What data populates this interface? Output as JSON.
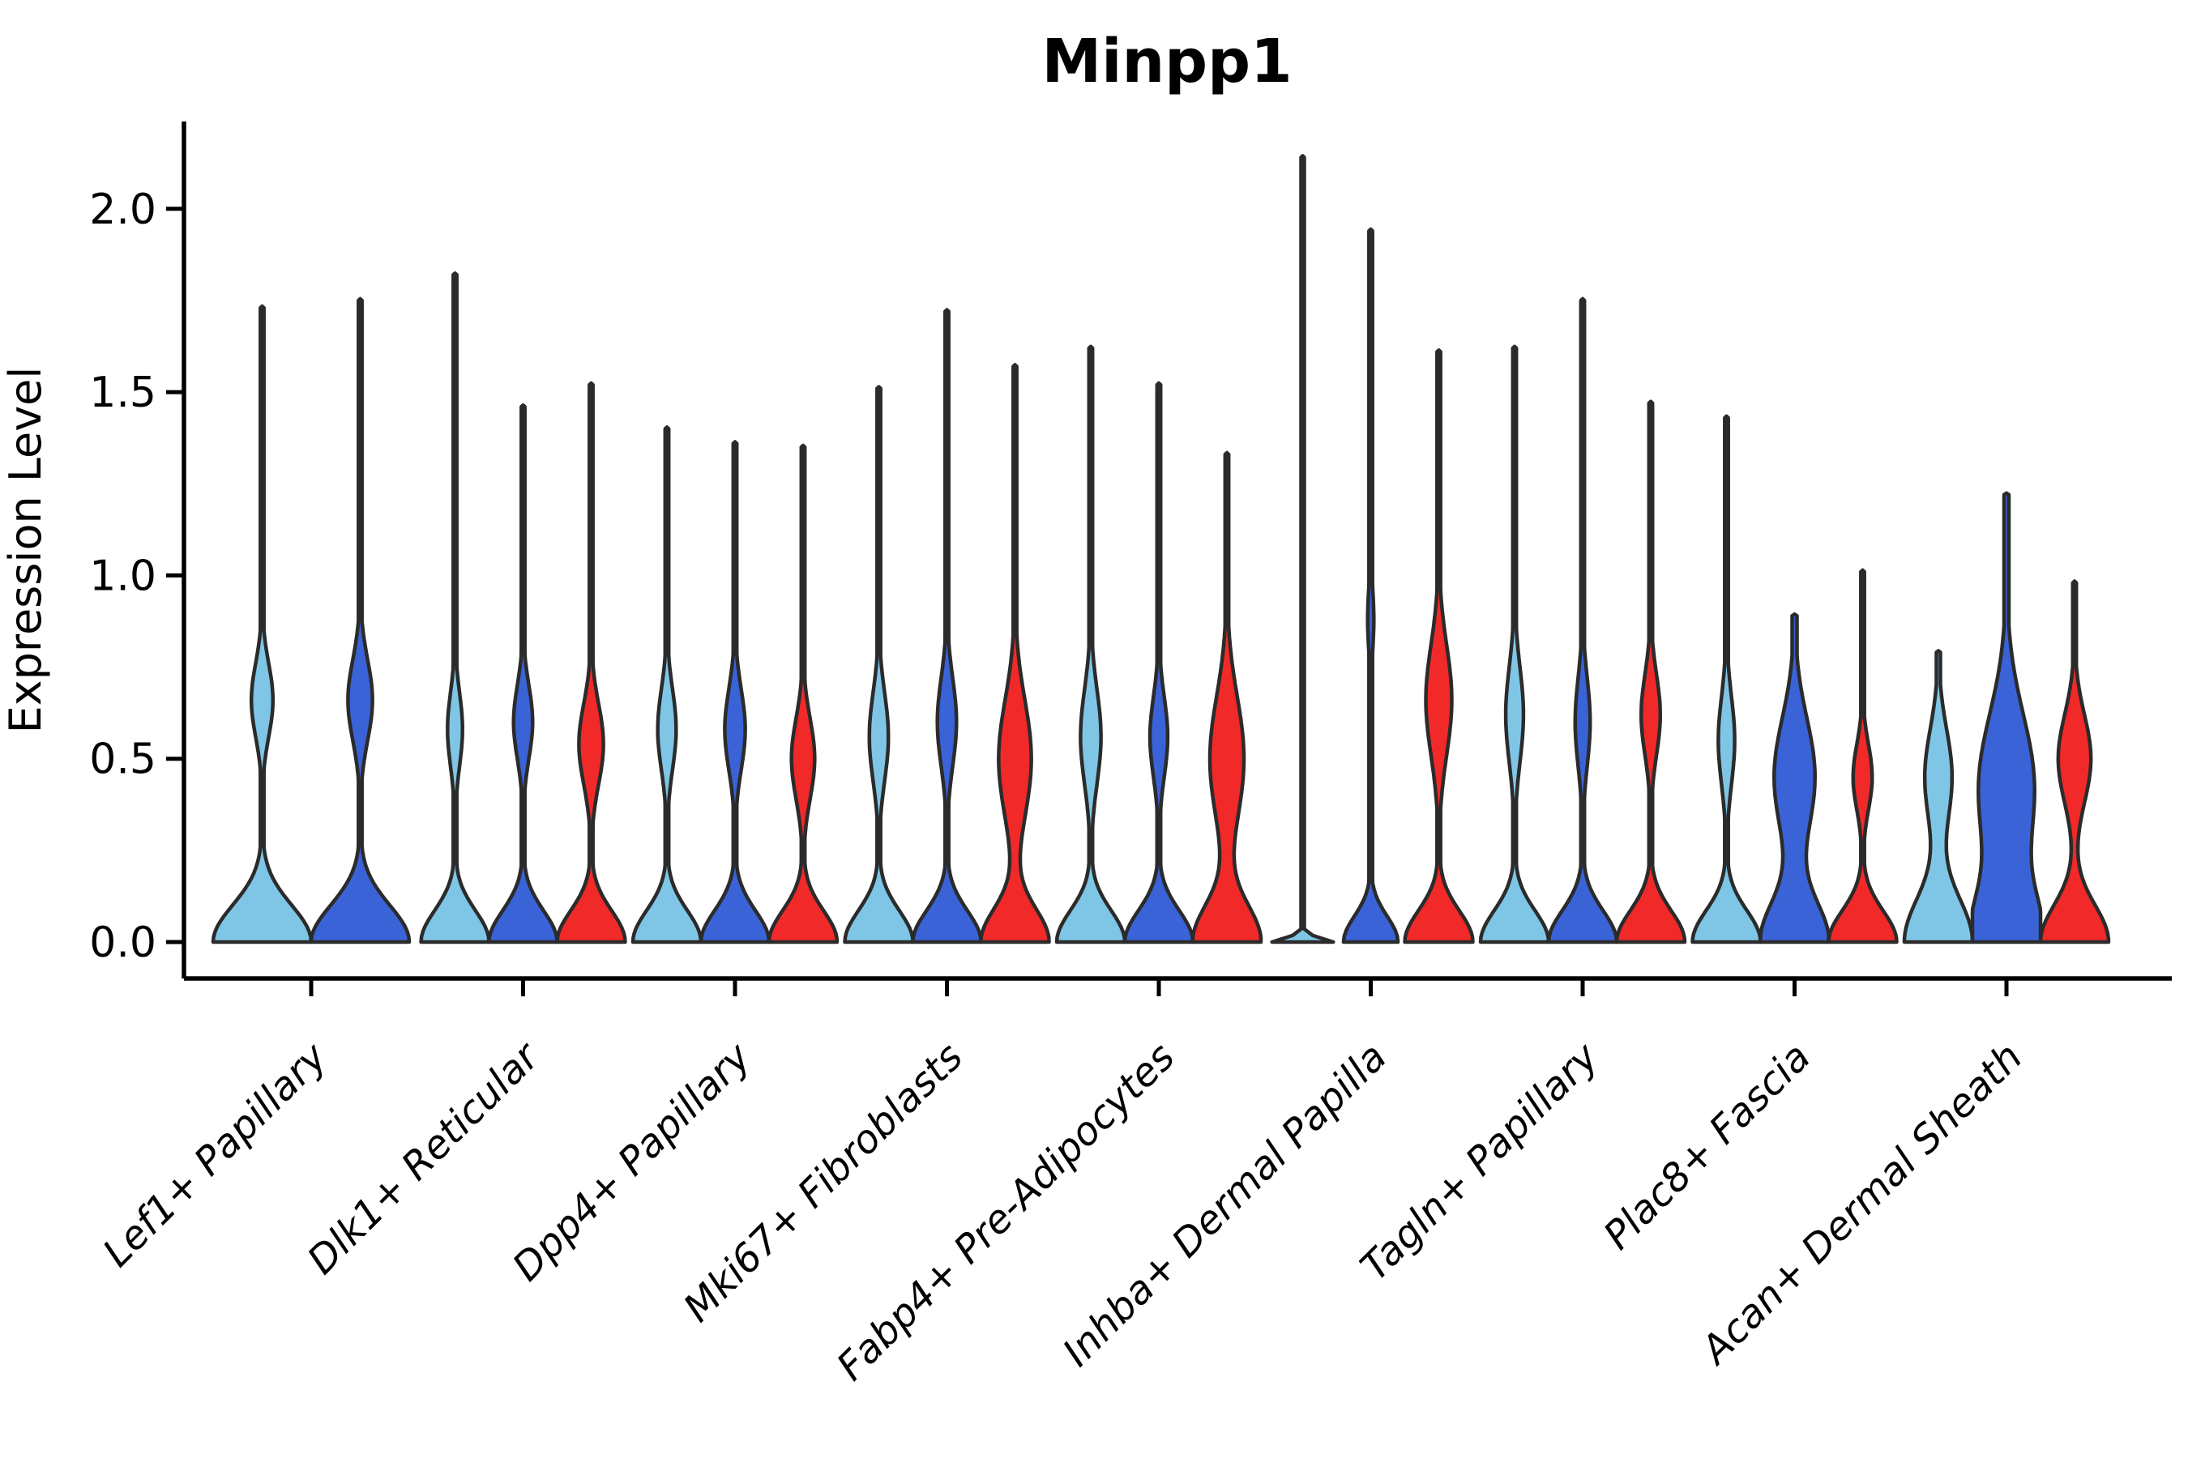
{
  "title": "Minpp1",
  "y_axis": {
    "label": "Expression Level",
    "tick_labels": [
      "0.0",
      "0.5",
      "1.0",
      "1.5",
      "2.0"
    ]
  },
  "x_axis": {
    "categories": [
      "Lef1+ Papillary",
      "Dlk1+ Reticular",
      "Dpp4+ Papillary",
      "Mki67+ Fibroblasts",
      "Fabp4+ Pre-Adipocytes",
      "Inhba+ Dermal Papilla",
      "Tagln+ Papillary",
      "Plac8+ Fascia",
      "Acan+ Dermal Sheath"
    ]
  },
  "colors": {
    "light_blue": "#7FC6E6",
    "dark_blue": "#3A63D8",
    "red": "#F12929",
    "outline": "#2B2B2B",
    "text": "#000000",
    "background": "#FFFFFF"
  },
  "chart_data": {
    "type": "violin",
    "title": "Minpp1",
    "xlabel": "",
    "ylabel": "Expression Level",
    "yticks": [
      0.0,
      0.5,
      1.0,
      1.5,
      2.0
    ],
    "ylim": [
      -0.1,
      2.24
    ],
    "grid": false,
    "legend": false,
    "series_colors": {
      "light_blue": "#7FC6E6",
      "dark_blue": "#3A63D8",
      "red": "#F12929"
    },
    "categories": [
      "Lef1+ Papillary",
      "Dlk1+ Reticular",
      "Dpp4+ Papillary",
      "Mki67+ Fibroblasts",
      "Fabp4+ Pre-Adipocytes",
      "Inhba+ Dermal Papilla",
      "Tagln+ Papillary",
      "Plac8+ Fascia",
      "Acan+ Dermal Sheath"
    ],
    "groups": [
      {
        "label": "Lef1+ Papillary",
        "violins": [
          {
            "c": "light_blue",
            "max": 1.73,
            "bs": 0.1,
            "ba": 1.0,
            "bulge": [
              0.22,
              0.66,
              0.1
            ]
          },
          {
            "c": "dark_blue",
            "max": 1.75,
            "bs": 0.1,
            "ba": 1.0,
            "bulge": [
              0.25,
              0.66,
              0.11
            ]
          }
        ]
      },
      {
        "label": "Dlk1+ Reticular",
        "violins": [
          {
            "c": "light_blue",
            "max": 1.82,
            "bs": 0.085,
            "ba": 1.0,
            "bulge": [
              0.22,
              0.58,
              0.1
            ]
          },
          {
            "c": "dark_blue",
            "max": 1.46,
            "bs": 0.085,
            "ba": 1.0,
            "bulge": [
              0.28,
              0.6,
              0.1
            ]
          },
          {
            "c": "red",
            "max": 1.52,
            "bs": 0.085,
            "ba": 1.0,
            "bulge": [
              0.36,
              0.54,
              0.11
            ]
          }
        ]
      },
      {
        "label": "Dpp4+ Papillary",
        "violins": [
          {
            "c": "light_blue",
            "max": 1.4,
            "bs": 0.085,
            "ba": 1.0,
            "bulge": [
              0.27,
              0.58,
              0.11
            ]
          },
          {
            "c": "dark_blue",
            "max": 1.36,
            "bs": 0.085,
            "ba": 1.0,
            "bulge": [
              0.3,
              0.58,
              0.11
            ]
          },
          {
            "c": "red",
            "max": 1.35,
            "bs": 0.085,
            "ba": 1.0,
            "bulge": [
              0.34,
              0.5,
              0.11
            ]
          }
        ]
      },
      {
        "label": "Mki67+ Fibroblasts",
        "violins": [
          {
            "c": "light_blue",
            "max": 1.51,
            "bs": 0.085,
            "ba": 1.0,
            "bulge": [
              0.28,
              0.56,
              0.12
            ]
          },
          {
            "c": "dark_blue",
            "max": 1.72,
            "bs": 0.085,
            "ba": 1.0,
            "bulge": [
              0.28,
              0.6,
              0.12
            ]
          },
          {
            "c": "red",
            "max": 1.57,
            "bs": 0.09,
            "ba": 1.0,
            "bulge": [
              0.48,
              0.5,
              0.16
            ]
          }
        ]
      },
      {
        "label": "Fabp4+ Pre-Adipocytes",
        "violins": [
          {
            "c": "light_blue",
            "max": 1.62,
            "bs": 0.085,
            "ba": 1.0,
            "bulge": [
              0.3,
              0.56,
              0.13
            ]
          },
          {
            "c": "dark_blue",
            "max": 1.52,
            "bs": 0.085,
            "ba": 1.0,
            "bulge": [
              0.26,
              0.56,
              0.11
            ]
          },
          {
            "c": "red",
            "max": 1.33,
            "bs": 0.1,
            "ba": 1.0,
            "bulge": [
              0.5,
              0.5,
              0.17
            ]
          }
        ]
      },
      {
        "label": "Inhba+ Dermal Papilla",
        "violins": [
          {
            "c": "light_blue",
            "max": 2.14,
            "bs": 0.012,
            "ba": 0.9,
            "bulge": null,
            "stem": 2.0
          },
          {
            "c": "dark_blue",
            "max": 1.94,
            "bs": 0.07,
            "ba": 0.8,
            "bulge": [
              0.09,
              0.88,
              0.09
            ]
          },
          {
            "c": "red",
            "max": 1.61,
            "bs": 0.085,
            "ba": 1.0,
            "bulge": [
              0.38,
              0.66,
              0.15
            ]
          }
        ]
      },
      {
        "label": "Tagln+ Papillary",
        "violins": [
          {
            "c": "light_blue",
            "max": 1.62,
            "bs": 0.085,
            "ba": 1.0,
            "bulge": [
              0.26,
              0.62,
              0.13
            ]
          },
          {
            "c": "dark_blue",
            "max": 1.75,
            "bs": 0.085,
            "ba": 1.0,
            "bulge": [
              0.22,
              0.6,
              0.12
            ]
          },
          {
            "c": "red",
            "max": 1.47,
            "bs": 0.085,
            "ba": 1.0,
            "bulge": [
              0.28,
              0.62,
              0.11
            ]
          }
        ]
      },
      {
        "label": "Plac8+ Fascia",
        "violins": [
          {
            "c": "light_blue",
            "max": 1.43,
            "bs": 0.085,
            "ba": 1.0,
            "bulge": [
              0.24,
              0.55,
              0.12
            ]
          },
          {
            "c": "dark_blue",
            "max": 0.89,
            "bs": 0.11,
            "ba": 1.0,
            "bulge": [
              0.6,
              0.45,
              0.16
            ],
            "stem": 3.0
          },
          {
            "c": "red",
            "max": 1.01,
            "bs": 0.085,
            "ba": 1.0,
            "bulge": [
              0.28,
              0.45,
              0.09
            ]
          }
        ]
      },
      {
        "label": "Acan+ Dermal Sheath",
        "violins": [
          {
            "c": "light_blue",
            "max": 0.79,
            "bs": 0.12,
            "ba": 1.0,
            "bulge": [
              0.4,
              0.45,
              0.13
            ],
            "stem": 2.5
          },
          {
            "c": "dark_blue",
            "max": 1.22,
            "bs": 0.13,
            "ba": 1.0,
            "bulge": [
              0.82,
              0.42,
              0.2
            ],
            "stem": 3.0
          },
          {
            "c": "red",
            "max": 0.98,
            "bs": 0.1,
            "ba": 1.0,
            "bulge": [
              0.48,
              0.5,
              0.12
            ]
          }
        ]
      }
    ]
  }
}
